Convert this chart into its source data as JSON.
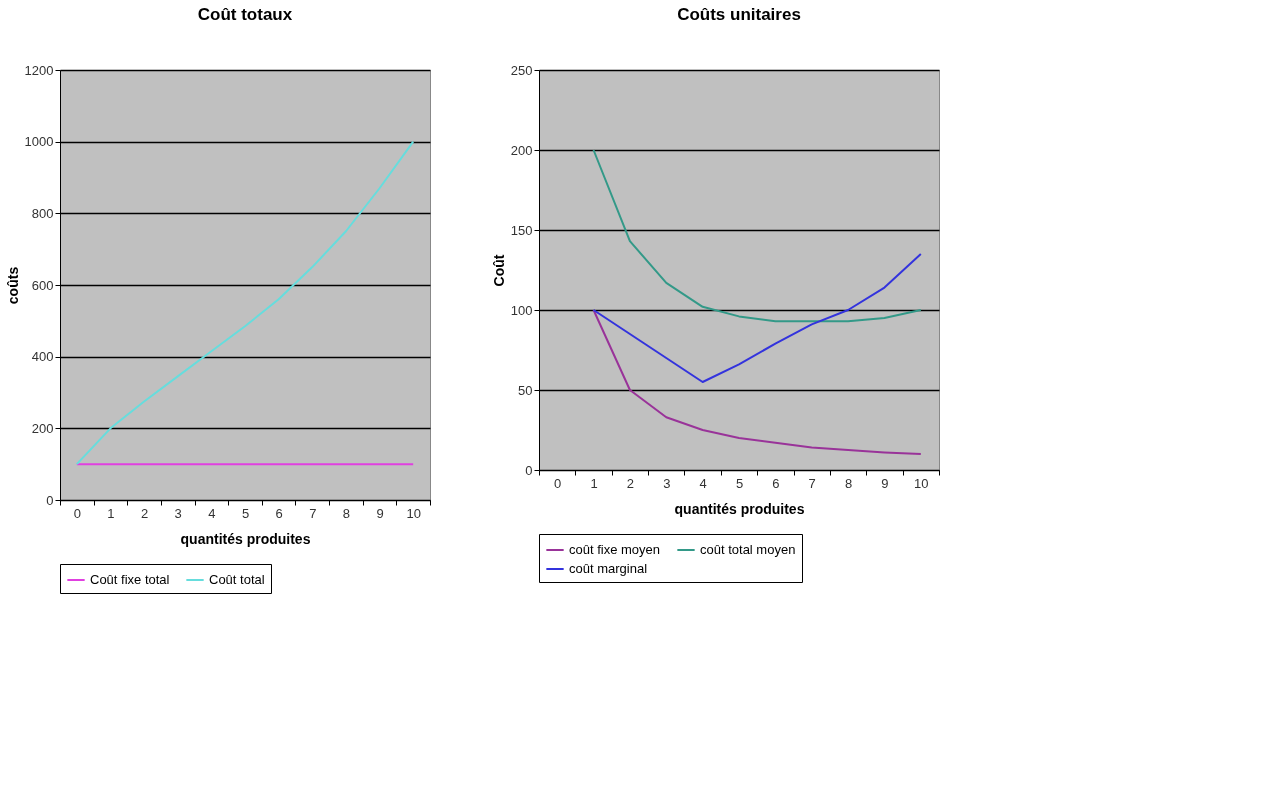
{
  "chart_data": [
    {
      "type": "line",
      "title": "Coût totaux",
      "xlabel": "quantités produites",
      "ylabel": "coûts",
      "categories": [
        "0",
        "1",
        "2",
        "3",
        "4",
        "5",
        "6",
        "7",
        "8",
        "9",
        "10"
      ],
      "series": [
        {
          "name": "Coût fixe total",
          "color": "#e040e0",
          "values": [
            100,
            100,
            100,
            100,
            100,
            100,
            100,
            100,
            100,
            100,
            100
          ]
        },
        {
          "name": "Coût total",
          "color": "#66dddd",
          "values": [
            100,
            200,
            275,
            345,
            415,
            485,
            560,
            650,
            750,
            870,
            1000
          ]
        }
      ],
      "ylim": [
        0,
        1200
      ],
      "yticks": [
        0,
        200,
        400,
        600,
        800,
        1000,
        1200
      ],
      "grid": "y",
      "legend": "bottom"
    },
    {
      "type": "line",
      "title": "Coûts unitaires",
      "xlabel": "quantités produites",
      "ylabel": "Coût",
      "categories": [
        "0",
        "1",
        "2",
        "3",
        "4",
        "5",
        "6",
        "7",
        "8",
        "9",
        "10"
      ],
      "series": [
        {
          "name": "coût fixe moyen",
          "color": "#993399",
          "values": [
            null,
            100,
            50,
            33,
            25,
            20,
            17,
            14,
            12.5,
            11,
            10
          ]
        },
        {
          "name": "coût total moyen",
          "color": "#339988",
          "values": [
            null,
            200,
            143,
            117,
            102,
            96,
            93,
            93,
            93,
            95,
            100
          ]
        },
        {
          "name": "coût marginal",
          "color": "#3333dd",
          "values": [
            null,
            100,
            85,
            70,
            55,
            66,
            79,
            91,
            100,
            114,
            135
          ]
        }
      ],
      "ylim": [
        0,
        250
      ],
      "yticks": [
        0,
        50,
        100,
        150,
        200,
        250
      ],
      "grid": "y",
      "legend": "bottom"
    }
  ]
}
